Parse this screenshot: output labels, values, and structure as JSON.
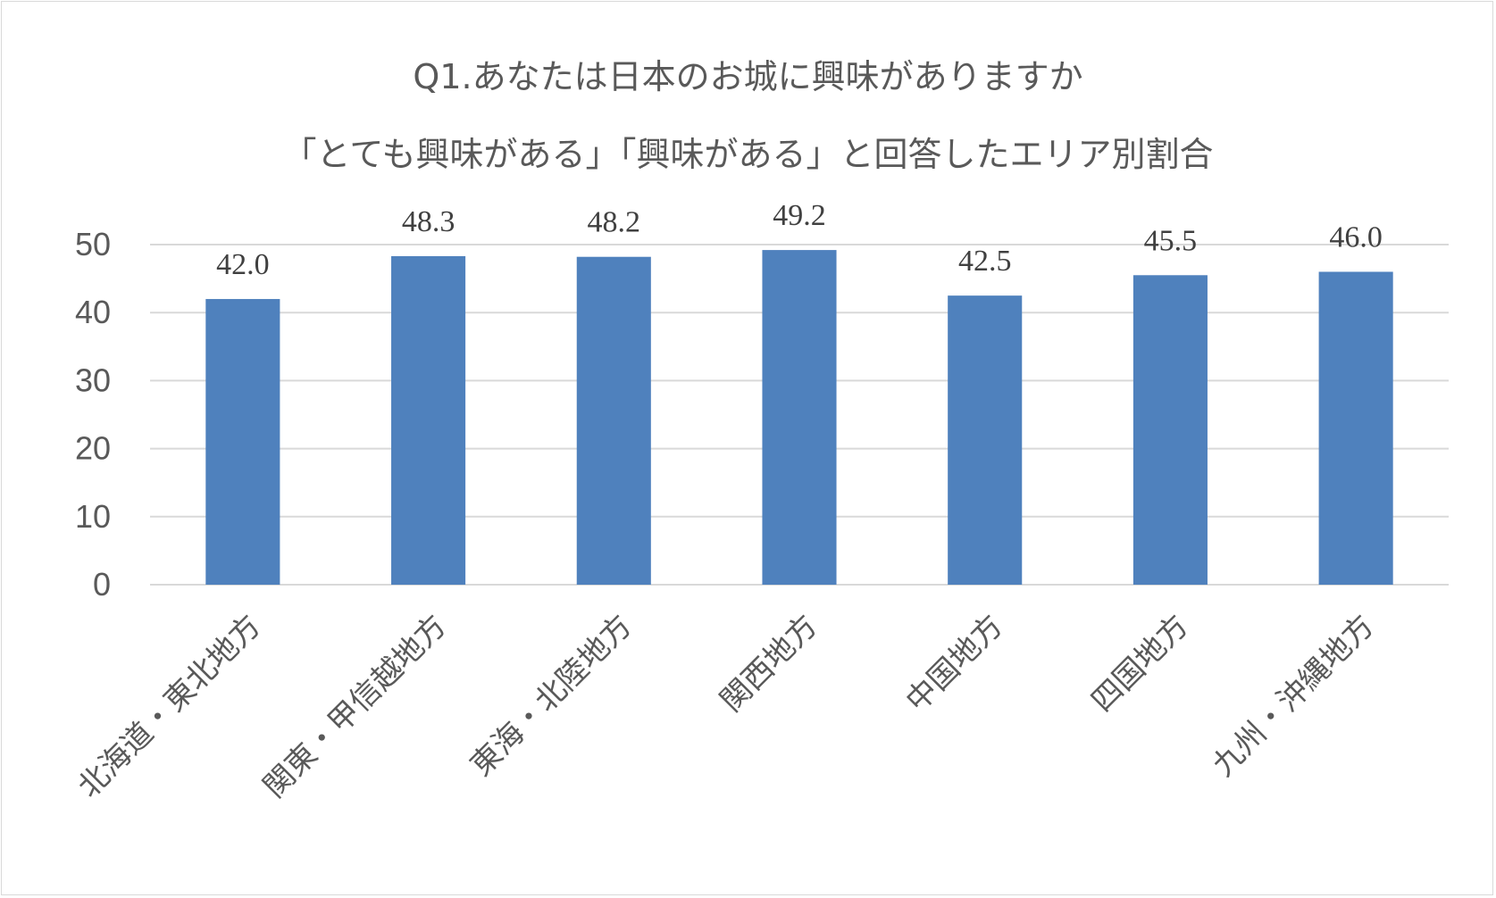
{
  "chart_data": {
    "type": "bar",
    "title": [
      "Q1.あなたは日本のお城に興味がありますか",
      "「とても興味がある」「興味がある」と回答したエリア別割合"
    ],
    "categories": [
      "北海道・東北地方",
      "関東・甲信越地方",
      "東海・北陸地方",
      "関西地方",
      "中国地方",
      "四国地方",
      "九州・沖縄地方"
    ],
    "values": [
      42.0,
      48.3,
      48.2,
      49.2,
      42.5,
      45.5,
      46.0
    ],
    "data_labels": [
      "42.0",
      "48.3",
      "48.2",
      "49.2",
      "42.5",
      "45.5",
      "46.0"
    ],
    "y_ticks": [
      "0",
      "10",
      "20",
      "30",
      "40",
      "50"
    ],
    "ylim": [
      0,
      50
    ],
    "grid": true,
    "bar_color": "#4f81bd",
    "grid_color": "#d9d9d9"
  }
}
